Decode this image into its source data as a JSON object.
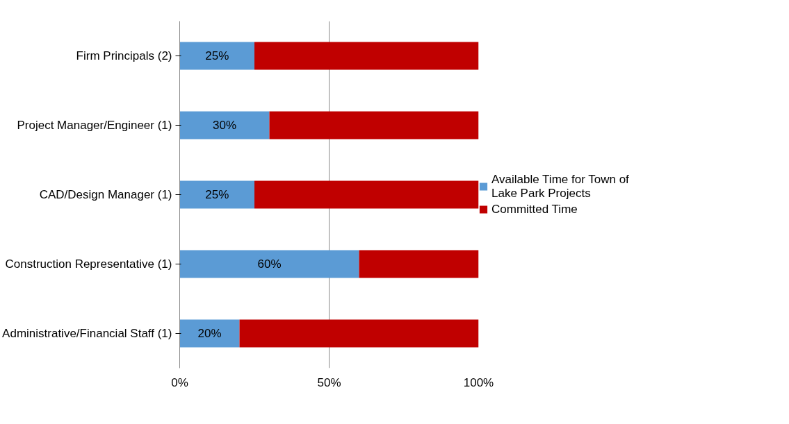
{
  "chart_data": {
    "type": "bar",
    "orientation": "horizontal",
    "stacked": true,
    "categories": [
      "Firm Principals (2)",
      "Project Manager/Engineer (1)",
      "CAD/Design Manager (1)",
      "Construction Representative (1)",
      "Administrative/Financial Staff (1)"
    ],
    "series": [
      {
        "name": "Available Time for Town of Lake Park Projects",
        "color": "#5b9bd5",
        "values": [
          25,
          30,
          25,
          60,
          20
        ],
        "value_labels": [
          "25%",
          "30%",
          "25%",
          "60%",
          "20%"
        ]
      },
      {
        "name": "Committed Time",
        "color": "#c00000",
        "values": [
          75,
          70,
          75,
          40,
          80
        ]
      }
    ],
    "xlim": [
      0,
      100
    ],
    "xticks": [
      {
        "value": 0,
        "label": "0%"
      },
      {
        "value": 50,
        "label": "50%"
      },
      {
        "value": 100,
        "label": "100%"
      }
    ],
    "grid": "x",
    "legend": "right"
  }
}
